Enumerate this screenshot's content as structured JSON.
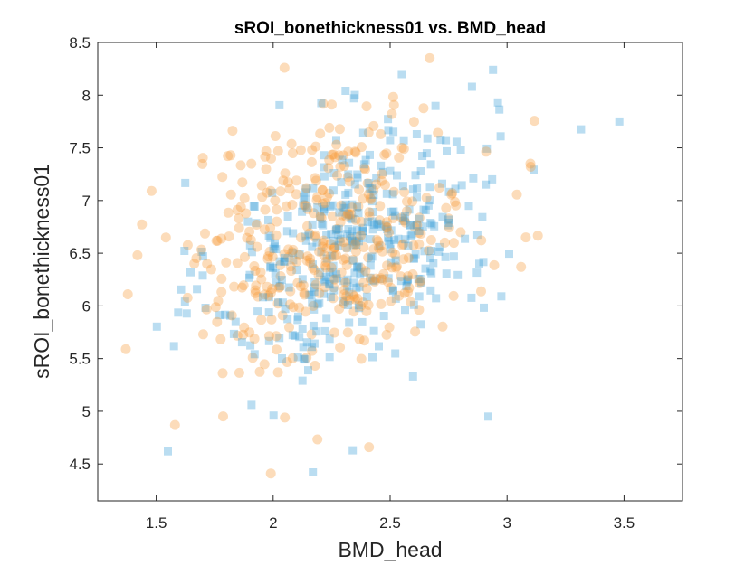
{
  "chart_data": {
    "type": "scatter",
    "title": "sROI_bonethickness01 vs. BMD_head",
    "xlabel": "BMD_head",
    "ylabel": "sROI_bonethickness01",
    "xlim": [
      1.25,
      3.75
    ],
    "ylim": [
      4.15,
      8.5
    ],
    "xticks": [
      1.5,
      2,
      2.5,
      3,
      3.5
    ],
    "yticks": [
      4.5,
      5,
      5.5,
      6,
      6.5,
      7,
      7.5,
      8,
      8.5
    ],
    "xtick_labels": [
      "1.5",
      "2",
      "2.5",
      "3",
      "3.5"
    ],
    "ytick_labels": [
      "4.5",
      "5",
      "5.5",
      "6",
      "6.5",
      "7",
      "7.5",
      "8",
      "8.5"
    ],
    "grid": false,
    "legend": "none",
    "series": [
      {
        "marker": "square",
        "color": "#3a9fd6",
        "opacity": 0.35,
        "center": [
          2.35,
          6.6
        ],
        "spread": [
          0.3,
          0.58
        ],
        "correlation": 0.35,
        "count": 380,
        "notable_points": [
          [
            3.48,
            7.75
          ],
          [
            1.55,
            4.62
          ],
          [
            2.17,
            4.42
          ],
          [
            2.55,
            8.2
          ],
          [
            2.94,
            8.24
          ],
          [
            2.85,
            8.08
          ],
          [
            2.92,
            4.95
          ],
          [
            2.34,
            4.63
          ]
        ]
      },
      {
        "marker": "circle",
        "color": "#f59a3a",
        "opacity": 0.35,
        "center": [
          2.25,
          6.65
        ],
        "spread": [
          0.3,
          0.6
        ],
        "correlation": 0.3,
        "count": 400,
        "notable_points": [
          [
            1.37,
            5.59
          ],
          [
            1.42,
            6.48
          ],
          [
            1.58,
            4.87
          ],
          [
            1.99,
            4.41
          ],
          [
            2.41,
            4.66
          ],
          [
            3.1,
            7.35
          ],
          [
            3.06,
            6.37
          ],
          [
            3.08,
            6.65
          ],
          [
            2.05,
            4.94
          ]
        ]
      }
    ]
  }
}
